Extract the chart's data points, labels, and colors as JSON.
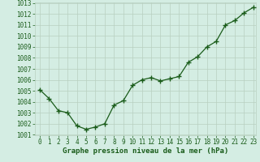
{
  "x": [
    0,
    1,
    2,
    3,
    4,
    5,
    6,
    7,
    8,
    9,
    10,
    11,
    12,
    13,
    14,
    15,
    16,
    17,
    18,
    19,
    20,
    21,
    22,
    23
  ],
  "y": [
    1005.1,
    1004.3,
    1003.2,
    1003.0,
    1001.8,
    1001.5,
    1001.7,
    1002.0,
    1003.7,
    1004.1,
    1005.5,
    1006.0,
    1006.2,
    1005.9,
    1006.1,
    1006.3,
    1007.6,
    1008.1,
    1009.0,
    1009.5,
    1011.0,
    1011.4,
    1012.1,
    1012.6
  ],
  "line_color": "#1a5c1a",
  "marker": "+",
  "marker_size": 4,
  "linewidth": 0.9,
  "bg_color": "#d4ede3",
  "grid_color": "#b8d0c0",
  "xlabel": "Graphe pression niveau de la mer (hPa)",
  "xlabel_color": "#1a5c1a",
  "xlabel_fontsize": 6.5,
  "tick_color": "#1a5c1a",
  "tick_fontsize": 5.5,
  "ylim": [
    1001,
    1013
  ],
  "xlim": [
    -0.5,
    23.3
  ],
  "yticks": [
    1001,
    1002,
    1003,
    1004,
    1005,
    1006,
    1007,
    1008,
    1009,
    1010,
    1011,
    1012,
    1013
  ],
  "xticks": [
    0,
    1,
    2,
    3,
    4,
    5,
    6,
    7,
    8,
    9,
    10,
    11,
    12,
    13,
    14,
    15,
    16,
    17,
    18,
    19,
    20,
    21,
    22,
    23
  ]
}
